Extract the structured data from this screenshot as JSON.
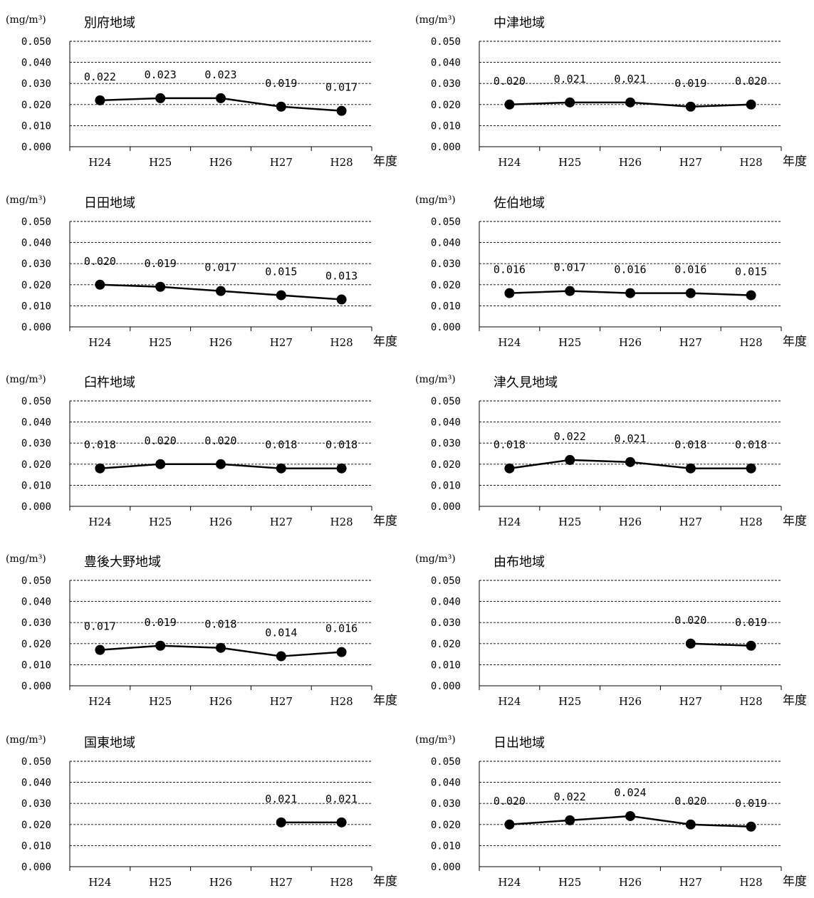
{
  "chart_data": [
    {
      "type": "line",
      "title": "別府地域",
      "ylabel": "(mg/m³)",
      "xlabel": "年度",
      "categories": [
        "H24",
        "H25",
        "H26",
        "H27",
        "H28"
      ],
      "ylim": [
        0,
        0.05
      ],
      "yticks": [
        "0.000",
        "0.010",
        "0.020",
        "0.030",
        "0.040",
        "0.050"
      ],
      "values": [
        0.022,
        0.023,
        0.023,
        0.019,
        0.017
      ],
      "labels": [
        "0.022",
        "0.023",
        "0.023",
        "0.019",
        "0.017"
      ],
      "grid": true,
      "grid_style": "dashed"
    },
    {
      "type": "line",
      "title": "中津地域",
      "ylabel": "(mg/m³)",
      "xlabel": "年度",
      "categories": [
        "H24",
        "H25",
        "H26",
        "H27",
        "H28"
      ],
      "ylim": [
        0,
        0.05
      ],
      "yticks": [
        "0.000",
        "0.010",
        "0.020",
        "0.030",
        "0.040",
        "0.050"
      ],
      "values": [
        0.02,
        0.021,
        0.021,
        0.019,
        0.02
      ],
      "labels": [
        "0.020",
        "0.021",
        "0.021",
        "0.019",
        "0.020"
      ],
      "grid": true,
      "grid_style": "dashed"
    },
    {
      "type": "line",
      "title": "日田地域",
      "ylabel": "(mg/m³)",
      "xlabel": "年度",
      "categories": [
        "H24",
        "H25",
        "H26",
        "H27",
        "H28"
      ],
      "ylim": [
        0,
        0.05
      ],
      "yticks": [
        "0.000",
        "0.010",
        "0.020",
        "0.030",
        "0.040",
        "0.050"
      ],
      "values": [
        0.02,
        0.019,
        0.017,
        0.015,
        0.013
      ],
      "labels": [
        "0.020",
        "0.019",
        "0.017",
        "0.015",
        "0.013"
      ],
      "grid": true,
      "grid_style": "dashed"
    },
    {
      "type": "line",
      "title": "佐伯地域",
      "ylabel": "(mg/m³)",
      "xlabel": "年度",
      "categories": [
        "H24",
        "H25",
        "H26",
        "H27",
        "H28"
      ],
      "ylim": [
        0,
        0.05
      ],
      "yticks": [
        "0.000",
        "0.010",
        "0.020",
        "0.030",
        "0.040",
        "0.050"
      ],
      "values": [
        0.016,
        0.017,
        0.016,
        0.016,
        0.015
      ],
      "labels": [
        "0.016",
        "0.017",
        "0.016",
        "0.016",
        "0.015"
      ],
      "grid": true,
      "grid_style": "dashed"
    },
    {
      "type": "line",
      "title": "臼杵地域",
      "ylabel": "(mg/m³)",
      "xlabel": "年度",
      "categories": [
        "H24",
        "H25",
        "H26",
        "H27",
        "H28"
      ],
      "ylim": [
        0,
        0.05
      ],
      "yticks": [
        "0.000",
        "0.010",
        "0.020",
        "0.030",
        "0.040",
        "0.050"
      ],
      "values": [
        0.018,
        0.02,
        0.02,
        0.018,
        0.018
      ],
      "labels": [
        "0.018",
        "0.020",
        "0.020",
        "0.018",
        "0.018"
      ],
      "grid": true,
      "grid_style": "dashed"
    },
    {
      "type": "line",
      "title": "津久見地域",
      "ylabel": "(mg/m³)",
      "xlabel": "年度",
      "categories": [
        "H24",
        "H25",
        "H26",
        "H27",
        "H28"
      ],
      "ylim": [
        0,
        0.05
      ],
      "yticks": [
        "0.000",
        "0.010",
        "0.020",
        "0.030",
        "0.040",
        "0.050"
      ],
      "values": [
        0.018,
        0.022,
        0.021,
        0.018,
        0.018
      ],
      "labels": [
        "0.018",
        "0.022",
        "0.021",
        "0.018",
        "0.018"
      ],
      "grid": true,
      "grid_style": "dashed"
    },
    {
      "type": "line",
      "title": "豊後大野地域",
      "ylabel": "(mg/m³)",
      "xlabel": "年度",
      "categories": [
        "H24",
        "H25",
        "H26",
        "H27",
        "H28"
      ],
      "ylim": [
        0,
        0.05
      ],
      "yticks": [
        "0.000",
        "0.010",
        "0.020",
        "0.030",
        "0.040",
        "0.050"
      ],
      "values": [
        0.017,
        0.019,
        0.018,
        0.014,
        0.016
      ],
      "labels": [
        "0.017",
        "0.019",
        "0.018",
        "0.014",
        "0.016"
      ],
      "grid": true,
      "grid_style": "dashed"
    },
    {
      "type": "line",
      "title": "由布地域",
      "ylabel": "(mg/m³)",
      "xlabel": "年度",
      "categories": [
        "H24",
        "H25",
        "H26",
        "H27",
        "H28"
      ],
      "ylim": [
        0,
        0.05
      ],
      "yticks": [
        "0.000",
        "0.010",
        "0.020",
        "0.030",
        "0.040",
        "0.050"
      ],
      "values": [
        null,
        null,
        null,
        0.02,
        0.019
      ],
      "labels": [
        null,
        null,
        null,
        "0.020",
        "0.019"
      ],
      "grid": true,
      "grid_style": "dashed"
    },
    {
      "type": "line",
      "title": "国東地域",
      "ylabel": "(mg/m³)",
      "xlabel": "年度",
      "categories": [
        "H24",
        "H25",
        "H26",
        "H27",
        "H28"
      ],
      "ylim": [
        0,
        0.05
      ],
      "yticks": [
        "0.000",
        "0.010",
        "0.020",
        "0.030",
        "0.040",
        "0.050"
      ],
      "values": [
        null,
        null,
        null,
        0.021,
        0.021
      ],
      "labels": [
        null,
        null,
        null,
        "0.021",
        "0.021"
      ],
      "grid": true,
      "grid_style": "dashed"
    },
    {
      "type": "line",
      "title": "日出地域",
      "ylabel": "(mg/m³)",
      "xlabel": "年度",
      "categories": [
        "H24",
        "H25",
        "H26",
        "H27",
        "H28"
      ],
      "ylim": [
        0,
        0.05
      ],
      "yticks": [
        "0.000",
        "0.010",
        "0.020",
        "0.030",
        "0.040",
        "0.050"
      ],
      "values": [
        0.02,
        0.022,
        0.024,
        0.02,
        0.019
      ],
      "labels": [
        "0.020",
        "0.022",
        "0.024",
        "0.020",
        "0.019"
      ],
      "grid": true,
      "grid_style": "dashed"
    }
  ],
  "colors": {
    "line": "#000000",
    "marker": "#000000",
    "grid": "#000000",
    "background": "#ffffff"
  }
}
